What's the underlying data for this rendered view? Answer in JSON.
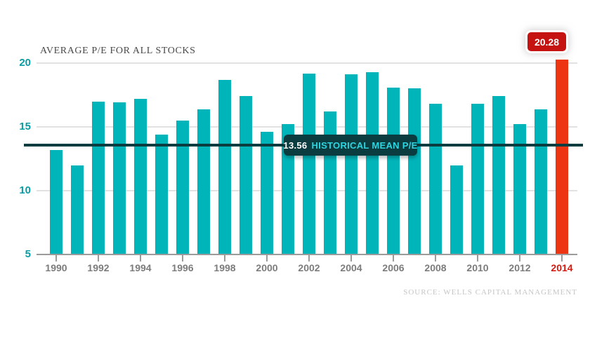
{
  "title": "AVERAGE P/E FOR ALL STOCKS",
  "badge": {
    "value": "20.28"
  },
  "mean_label": {
    "value": "13.56",
    "text": "HISTORICAL MEAN P/E"
  },
  "source": "SOURCE: WELLS CAPITAL MANAGEMENT",
  "colors": {
    "bar": "#00b5ba",
    "highlight_bar": "#ee3511",
    "badge_bg": "#c41310",
    "badge_text": "#ffffff",
    "mean_dark": "#0b3c3f",
    "mean_value_text": "#ffffff",
    "mean_label_text": "#2cd5e0",
    "y_tick_label": "#0a9ca4",
    "x_tick_label": "#7c7c7c",
    "x_tick_label_highlight": "#d6190f",
    "gridline": "#e2e2e2",
    "axis_line": "#9b9b9b",
    "title_text": "#4a4a4a",
    "source_text": "#c6c6c6"
  },
  "chart_data": {
    "type": "bar",
    "title": "AVERAGE P/E FOR ALL STOCKS",
    "categories": [
      1990,
      1991,
      1992,
      1993,
      1994,
      1995,
      1996,
      1997,
      1998,
      1999,
      2000,
      2001,
      2002,
      2003,
      2004,
      2005,
      2006,
      2007,
      2008,
      2009,
      2010,
      2011,
      2012,
      2013,
      2014
    ],
    "values": [
      13.2,
      12.0,
      17.0,
      16.9,
      17.2,
      14.4,
      15.5,
      16.4,
      18.7,
      17.4,
      14.6,
      15.2,
      19.2,
      16.2,
      19.1,
      19.3,
      18.1,
      18.0,
      16.8,
      12.0,
      16.8,
      17.4,
      15.2,
      16.4,
      20.28
    ],
    "highlight_category": 2014,
    "highlight_value": 20.28,
    "mean": 13.56,
    "mean_annotation": "13.56 HISTORICAL MEAN P/E",
    "y_ticks": [
      5,
      10,
      15,
      20
    ],
    "ylim": [
      5,
      21
    ],
    "x_tick_interval": 2,
    "grid": "horizontal",
    "legend": "none",
    "annotations": [
      "20.28 badge above 2014 bar"
    ]
  }
}
